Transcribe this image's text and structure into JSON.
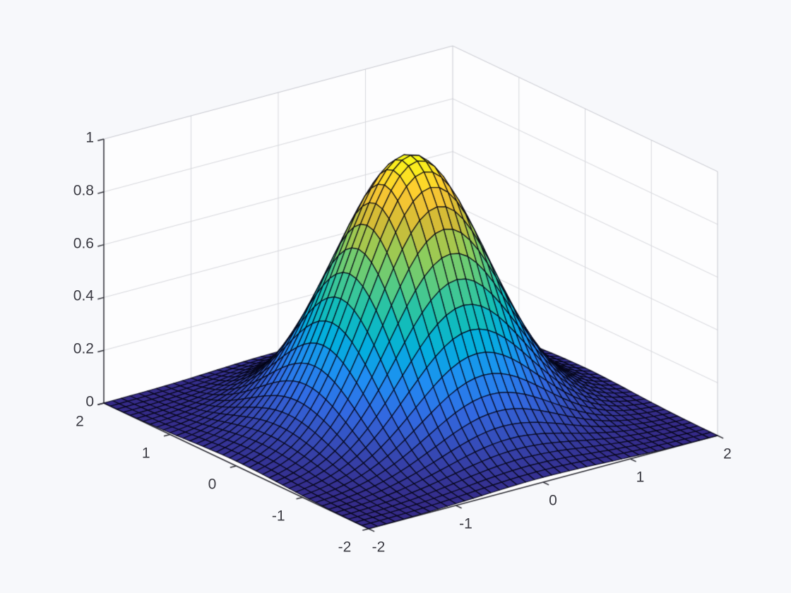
{
  "figure": {
    "kind": "matlab-style 3d surface figure",
    "background_color": "#f7f8fb",
    "wall_color": "#fdfdfe",
    "wall_grid_color": "#d7d8dd",
    "box_edge_color": "#c8c9d0",
    "axis_line_color": "#2b2b33",
    "tick_label_color": "#3a3a42"
  },
  "chart_data": {
    "type": "surface",
    "title": "",
    "xlabel": "",
    "ylabel": "",
    "zlabel": "",
    "function": "z = exp(-(x^2 + y^2))",
    "x": {
      "min": -2,
      "max": 2,
      "step": 0.1,
      "ticks": [
        -2,
        -1,
        0,
        1,
        2
      ],
      "tick_labels": [
        "-2",
        "-1",
        "0",
        "1",
        "2"
      ]
    },
    "y": {
      "min": -2,
      "max": 2,
      "step": 0.1,
      "ticks": [
        -2,
        -1,
        0,
        1,
        2
      ],
      "tick_labels": [
        "-2",
        "-1",
        "0",
        "1",
        "2"
      ]
    },
    "z": {
      "min": 0,
      "max": 1,
      "ticks": [
        0,
        0.2,
        0.4,
        0.6,
        0.8,
        1
      ],
      "tick_labels": [
        "0",
        "0.2",
        "0.4",
        "0.6",
        "0.8",
        "1"
      ]
    },
    "grid_points": {
      "rows": 41,
      "cols": 41
    },
    "peak": {
      "x": 0,
      "y": 0,
      "z": 1
    },
    "view": {
      "azimuth_deg": -37.5,
      "elevation_deg": 30,
      "projection": "orthographic"
    },
    "mesh_edge_color": "#000000",
    "colormap": {
      "name": "parula",
      "stops": [
        [
          0.0,
          "#352a87"
        ],
        [
          0.1,
          "#364ab6"
        ],
        [
          0.2,
          "#326ae2"
        ],
        [
          0.3,
          "#208df3"
        ],
        [
          0.4,
          "#03aede"
        ],
        [
          0.5,
          "#15bfb4"
        ],
        [
          0.6,
          "#53cb86"
        ],
        [
          0.7,
          "#91cd59"
        ],
        [
          0.8,
          "#d1bb36"
        ],
        [
          0.9,
          "#fec832"
        ],
        [
          1.0,
          "#f9fb15"
        ]
      ]
    },
    "grid_on": true,
    "legend": null,
    "sample_coords": [
      -2,
      -1.5,
      -1,
      -0.5,
      0,
      0.5,
      1,
      1.5,
      2
    ],
    "z_samples": [
      [
        0.0003,
        0.0019,
        0.0067,
        0.0143,
        0.0183,
        0.0143,
        0.0067,
        0.0019,
        0.0003
      ],
      [
        0.0019,
        0.0111,
        0.0388,
        0.0821,
        0.1054,
        0.0821,
        0.0388,
        0.0111,
        0.0019
      ],
      [
        0.0067,
        0.0388,
        0.1353,
        0.2865,
        0.3679,
        0.2865,
        0.1353,
        0.0388,
        0.0067
      ],
      [
        0.0143,
        0.0821,
        0.2865,
        0.6065,
        0.7788,
        0.6065,
        0.2865,
        0.0821,
        0.0143
      ],
      [
        0.0183,
        0.1054,
        0.3679,
        0.7788,
        1.0,
        0.7788,
        0.3679,
        0.1054,
        0.0183
      ],
      [
        0.0143,
        0.0821,
        0.2865,
        0.6065,
        0.7788,
        0.6065,
        0.2865,
        0.0821,
        0.0143
      ],
      [
        0.0067,
        0.0388,
        0.1353,
        0.2865,
        0.3679,
        0.2865,
        0.1353,
        0.0388,
        0.0067
      ],
      [
        0.0019,
        0.0111,
        0.0388,
        0.0821,
        0.1054,
        0.0821,
        0.0388,
        0.0111,
        0.0019
      ],
      [
        0.0003,
        0.0019,
        0.0067,
        0.0143,
        0.0183,
        0.0143,
        0.0067,
        0.0019,
        0.0003
      ]
    ]
  }
}
